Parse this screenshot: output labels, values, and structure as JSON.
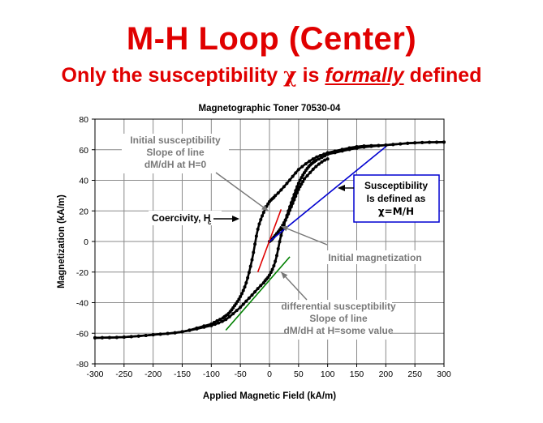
{
  "slide": {
    "title": "M-H Loop (Center)",
    "subtitle_prefix": "Only the susceptibility ",
    "subtitle_symbol": "χ",
    "subtitle_mid": " is ",
    "subtitle_emph": "formally",
    "subtitle_suffix": " defined",
    "title_color": "#e00000"
  },
  "chart_data": {
    "type": "scatter",
    "title": "Magnetographic Toner 70530-04",
    "xlabel": "Applied Magnetic Field (kA/m)",
    "ylabel": "Magnetization (kA/m)",
    "xlim": [
      -300,
      300
    ],
    "ylim": [
      -80,
      80
    ],
    "xticks": [
      -300,
      -250,
      -200,
      -150,
      -100,
      -50,
      0,
      50,
      100,
      150,
      200,
      250,
      300
    ],
    "yticks": [
      -80,
      -60,
      -40,
      -20,
      0,
      20,
      40,
      60,
      80
    ],
    "grid": true,
    "series": [
      {
        "role": "descending-branch",
        "color": "#000000",
        "x": [
          300,
          250,
          200,
          150,
          100,
          75,
          50,
          30,
          10,
          0,
          -10,
          -20,
          -30,
          -40,
          -50,
          -60,
          -70,
          -80,
          -100,
          -150,
          -200,
          -250,
          -300
        ],
        "y": [
          65,
          64.5,
          63,
          62,
          58,
          54,
          47,
          38,
          30,
          26,
          19,
          8,
          -12,
          -27,
          -36,
          -42,
          -47,
          -50,
          -54,
          -59,
          -61,
          -62.5,
          -63
        ]
      },
      {
        "role": "ascending-branch",
        "color": "#000000",
        "x": [
          -300,
          -250,
          -200,
          -150,
          -100,
          -75,
          -50,
          -30,
          -10,
          0,
          10,
          20,
          30,
          40,
          50,
          60,
          70,
          80,
          100,
          150,
          200,
          250,
          300
        ],
        "y": [
          -63,
          -62.5,
          -61,
          -59,
          -55,
          -51,
          -43,
          -35,
          -27,
          -22,
          -13,
          4,
          17,
          28,
          38,
          45,
          50,
          53,
          57,
          61,
          63,
          64.5,
          65
        ]
      },
      {
        "role": "initial-magnetization",
        "color": "#000000",
        "x": [
          0,
          10,
          20,
          30,
          40,
          50,
          60,
          80,
          100
        ],
        "y": [
          0,
          4,
          9,
          16,
          25,
          34,
          41,
          49,
          54
        ]
      }
    ],
    "lines": [
      {
        "name": "initial-slope",
        "color": "#e00000",
        "x": [
          -20,
          20
        ],
        "y": [
          -20,
          21
        ]
      },
      {
        "name": "susceptibility-chord",
        "color": "#0000d0",
        "x": [
          0,
          200
        ],
        "y": [
          0,
          62
        ]
      },
      {
        "name": "differential-tangent",
        "color": "#008000",
        "x": [
          -75,
          35
        ],
        "y": [
          -58,
          -10
        ]
      }
    ],
    "annotations": {
      "initial_susceptibility": [
        "Initial susceptibility",
        "Slope of line",
        "dM/dH at H=0"
      ],
      "coercivity": "Coercivity, H",
      "coercivity_sub": "c",
      "initial_magnetization": "Initial magnetization",
      "differential": [
        "differential susceptibility",
        "Slope of line",
        "dM/dH at H=some value"
      ],
      "defined": [
        "Susceptibility",
        "Is defined as",
        "χ=M/H"
      ]
    }
  }
}
